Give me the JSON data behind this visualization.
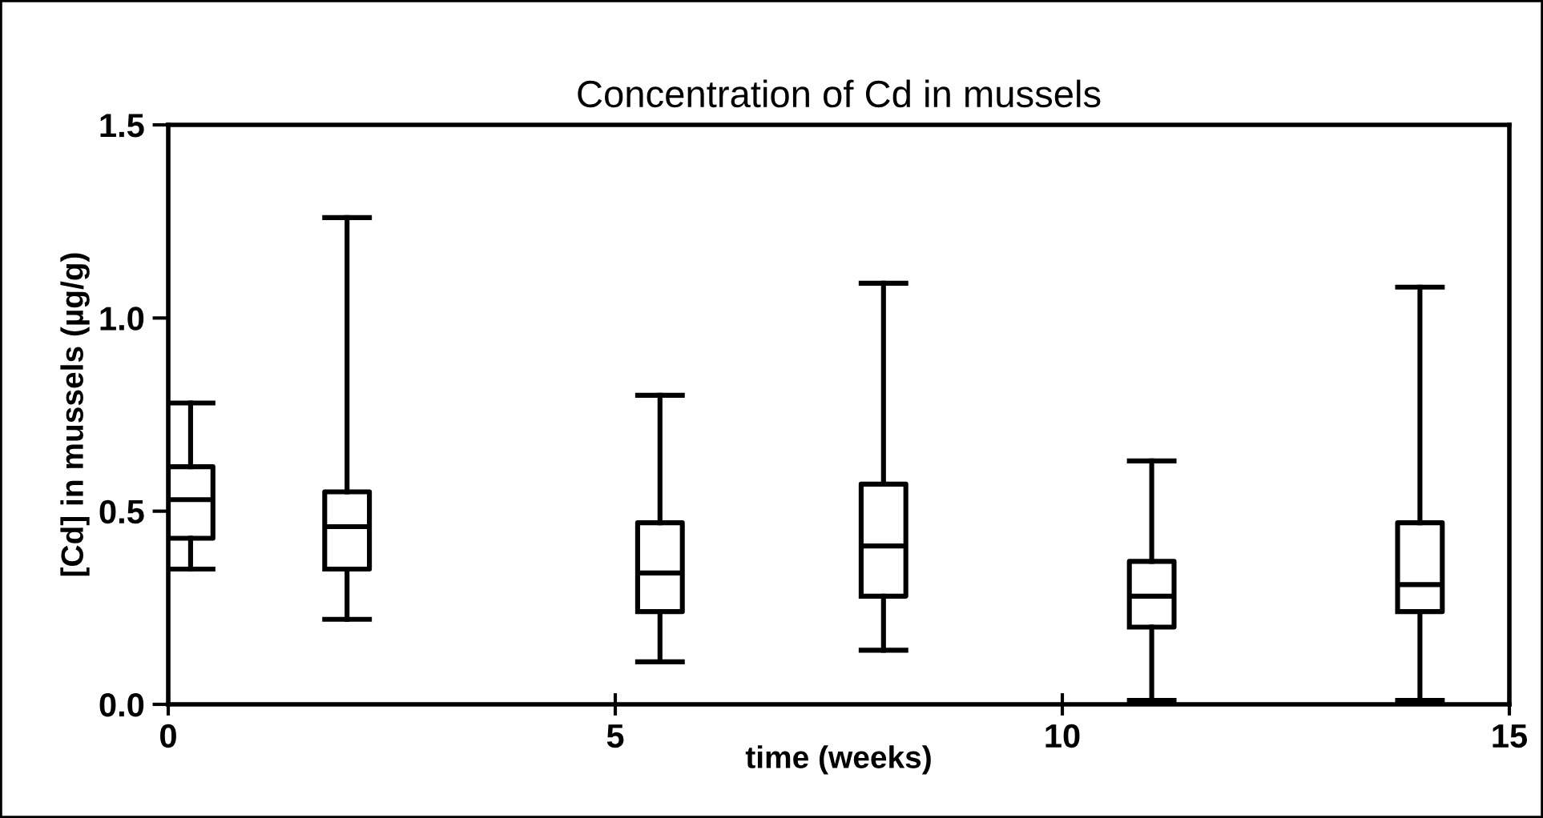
{
  "chart_data": {
    "type": "box",
    "title": "Concentration of Cd in mussels",
    "xlabel": "time (weeks)",
    "ylabel": "[Cd] in mussels (µg/g)",
    "x": [
      0.25,
      2,
      5.5,
      8,
      11,
      14
    ],
    "boxes": [
      {
        "low": 0.35,
        "q1": 0.43,
        "median": 0.53,
        "q3": 0.615,
        "high": 0.78
      },
      {
        "low": 0.22,
        "q1": 0.35,
        "median": 0.46,
        "q3": 0.55,
        "high": 1.26
      },
      {
        "low": 0.11,
        "q1": 0.24,
        "median": 0.34,
        "q3": 0.47,
        "high": 0.8
      },
      {
        "low": 0.14,
        "q1": 0.28,
        "median": 0.41,
        "q3": 0.57,
        "high": 1.09
      },
      {
        "low": 0.01,
        "q1": 0.2,
        "median": 0.28,
        "q3": 0.37,
        "high": 0.63
      },
      {
        "low": 0.01,
        "q1": 0.24,
        "median": 0.31,
        "q3": 0.47,
        "high": 1.08
      }
    ],
    "color": "#000000",
    "xlim": [
      0,
      15
    ],
    "xticks": [
      0,
      5,
      10,
      15
    ],
    "ylim": [
      0,
      1.5
    ],
    "yticks": [
      {
        "value": 0,
        "label": "0.0"
      },
      {
        "value": 0.5,
        "label": "0.5"
      },
      {
        "value": 1.0,
        "label": "1.0"
      },
      {
        "value": 1.5,
        "label": "1.5"
      }
    ],
    "grid": false,
    "legend": false
  }
}
